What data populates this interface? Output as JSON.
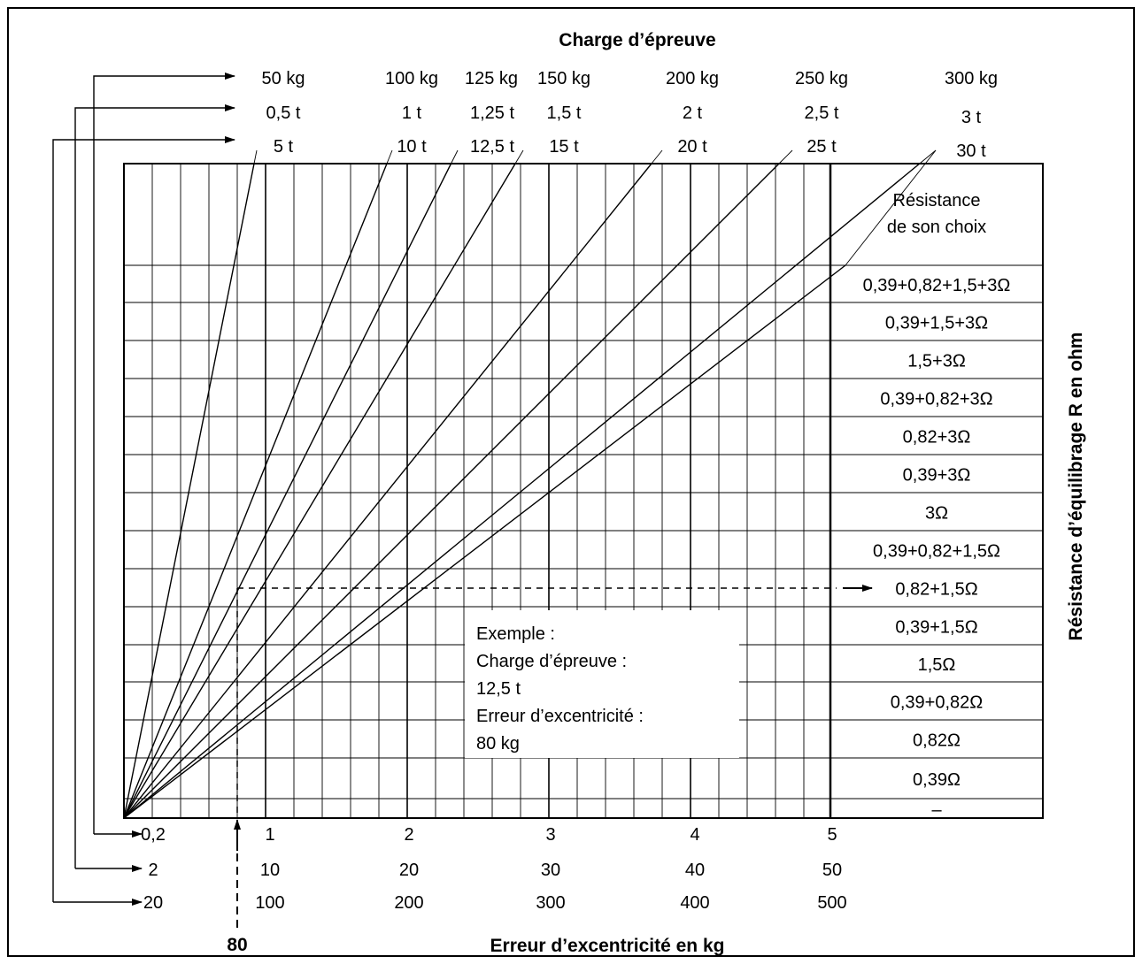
{
  "top_title": "Charge d’épreuve",
  "bottom_title": "Erreur d’excentricité en kg",
  "right_title": "Résistance d’équilibrage R en ohm",
  "load_rows": [
    [
      "50 kg",
      "100 kg",
      "125 kg",
      "150 kg",
      "200 kg",
      "250 kg",
      "300 kg"
    ],
    [
      "0,5 t",
      "1 t",
      "1,25 t",
      "1,5 t",
      "2 t",
      "2,5 t",
      "3 t"
    ],
    [
      "5 t",
      "10 t",
      "12,5 t",
      "15 t",
      "20 t",
      "25 t",
      "30 t"
    ]
  ],
  "error_rows": [
    [
      "0,2",
      "1",
      "2",
      "3",
      "4",
      "5"
    ],
    [
      "2",
      "10",
      "20",
      "30",
      "40",
      "50"
    ],
    [
      "20",
      "100",
      "200",
      "300",
      "400",
      "500"
    ]
  ],
  "resistance_header": [
    "Résistance",
    "de son choix"
  ],
  "resistances": [
    "0,39+0,82+1,5+3Ω",
    "0,39+1,5+3Ω",
    "1,5+3Ω",
    "0,39+0,82+3Ω",
    "0,82+3Ω",
    "0,39+3Ω",
    "3Ω",
    "0,39+0,82+1,5Ω",
    "0,82+1,5Ω",
    "0,39+1,5Ω",
    "1,5Ω",
    "0,39+0,82Ω",
    "0,82Ω",
    "0,39Ω",
    "–"
  ],
  "example": {
    "lines": [
      "Exemple :",
      "Charge d’épreuve :",
      "12,5 t",
      "Erreur d’excentricité :",
      "80 kg"
    ],
    "marker_label": "80"
  }
}
